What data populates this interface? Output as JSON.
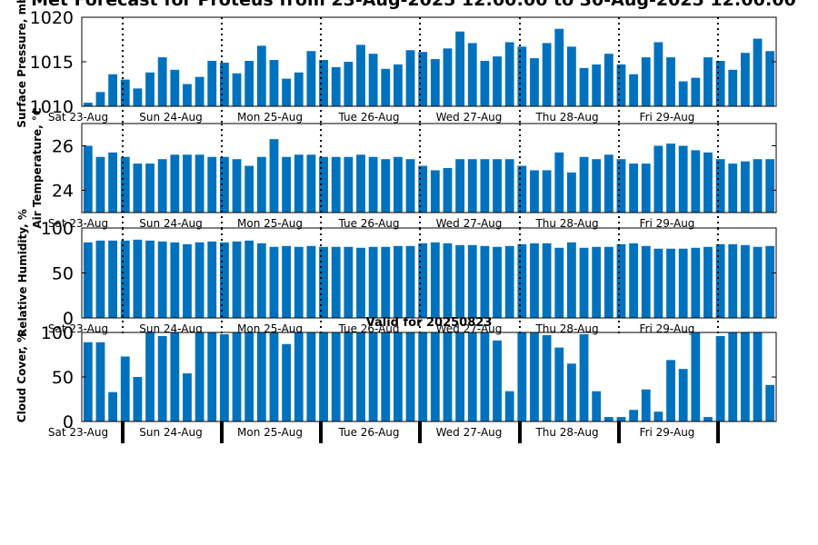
{
  "title": "Met Forecast for Proteus from 23-Aug-2025 12:00:00 to 30-Aug-2025 12:00:00",
  "colors": {
    "bar": "#0072bd",
    "axis": "#000000",
    "divider": "#000000"
  },
  "chart_data": [
    {
      "type": "bar",
      "ylabel": "Surface Pressure, mb",
      "ylim": [
        1010,
        1020
      ],
      "yticks": [
        1010,
        1015,
        1020
      ],
      "day_labels": [
        "Sat 23-Aug",
        "Sun 24-Aug",
        "Mon 25-Aug",
        "Tue 26-Aug",
        "Wed 27-Aug",
        "Thu 28-Aug",
        "Fri 29-Aug"
      ],
      "divider_style": "dotted",
      "values": [
        1010.4,
        1011.6,
        1013.6,
        1013.0,
        1012.0,
        1013.8,
        1015.5,
        1014.1,
        1012.5,
        1013.3,
        1015.1,
        1014.9,
        1013.7,
        1015.1,
        1016.8,
        1015.2,
        1013.1,
        1013.8,
        1016.2,
        1015.2,
        1014.4,
        1015.0,
        1016.9,
        1015.9,
        1014.2,
        1014.7,
        1016.3,
        1016.1,
        1015.3,
        1016.5,
        1018.4,
        1017.1,
        1015.1,
        1015.6,
        1017.2,
        1016.7,
        1015.4,
        1017.1,
        1018.7,
        1016.7,
        1014.3,
        1014.7,
        1015.9,
        1014.7,
        1013.6,
        1015.5,
        1017.2,
        1015.5,
        1012.8,
        1013.2,
        1015.5,
        1015.1,
        1014.1,
        1016.0,
        1017.6,
        1016.2
      ]
    },
    {
      "type": "bar",
      "ylabel": "Air Temperature, °C",
      "ylim": [
        23,
        27
      ],
      "yticks": [
        24,
        26
      ],
      "day_labels": [
        "Sat 23-Aug",
        "Sun 24-Aug",
        "Mon 25-Aug",
        "Tue 26-Aug",
        "Wed 27-Aug",
        "Thu 28-Aug",
        "Fri 29-Aug"
      ],
      "divider_style": "dotted",
      "values": [
        26.0,
        25.5,
        25.7,
        25.5,
        25.2,
        25.2,
        25.4,
        25.6,
        25.6,
        25.6,
        25.5,
        25.5,
        25.4,
        25.1,
        25.5,
        26.3,
        25.5,
        25.6,
        25.6,
        25.5,
        25.5,
        25.5,
        25.6,
        25.5,
        25.4,
        25.5,
        25.4,
        25.1,
        24.9,
        25.0,
        25.4,
        25.4,
        25.4,
        25.4,
        25.4,
        25.1,
        24.9,
        24.9,
        25.7,
        24.8,
        25.5,
        25.4,
        25.6,
        25.4,
        25.2,
        25.2,
        26.0,
        26.1,
        26.0,
        25.8,
        25.7,
        25.4,
        25.2,
        25.3,
        25.4,
        25.4
      ]
    },
    {
      "type": "bar",
      "ylabel": "Relative Humidity, %",
      "ylim": [
        0,
        100
      ],
      "yticks": [
        0,
        50,
        100
      ],
      "day_labels": [
        "Sat 23-Aug",
        "Sun 24-Aug",
        "Mon 25-Aug",
        "Tue 26-Aug",
        "Wed 27-Aug",
        "Thu 28-Aug",
        "Fri 29-Aug"
      ],
      "divider_style": "dotted",
      "values": [
        84,
        86,
        86,
        86,
        87,
        86,
        85,
        84,
        82,
        84,
        85,
        84,
        85,
        86,
        83,
        79,
        80,
        79,
        80,
        79,
        79,
        79,
        78,
        79,
        79,
        80,
        80,
        83,
        84,
        83,
        81,
        81,
        80,
        79,
        80,
        82,
        83,
        83,
        78,
        84,
        78,
        79,
        79,
        82,
        83,
        80,
        77,
        77,
        77,
        78,
        79,
        82,
        82,
        81,
        79,
        80
      ]
    },
    {
      "type": "bar",
      "ylabel": "Cloud Cover, %",
      "subtitle": "Valid for 20250823",
      "ylim": [
        0,
        100
      ],
      "yticks": [
        0,
        50,
        100
      ],
      "day_labels": [
        "Sat 23-Aug",
        "Sun 24-Aug",
        "Mon 25-Aug",
        "Tue 26-Aug",
        "Wed 27-Aug",
        "Thu 28-Aug",
        "Fri 29-Aug"
      ],
      "divider_style": "solid",
      "values": [
        89,
        89,
        33,
        73,
        50,
        100,
        96,
        100,
        54,
        100,
        100,
        98,
        100,
        100,
        100,
        100,
        87,
        100,
        100,
        100,
        100,
        100,
        100,
        100,
        100,
        100,
        100,
        100,
        100,
        100,
        100,
        100,
        100,
        91,
        34,
        100,
        100,
        97,
        83,
        65,
        98,
        34,
        5,
        5,
        13,
        36,
        11,
        69,
        59,
        100,
        5,
        96,
        100,
        100,
        100,
        41
      ]
    }
  ]
}
